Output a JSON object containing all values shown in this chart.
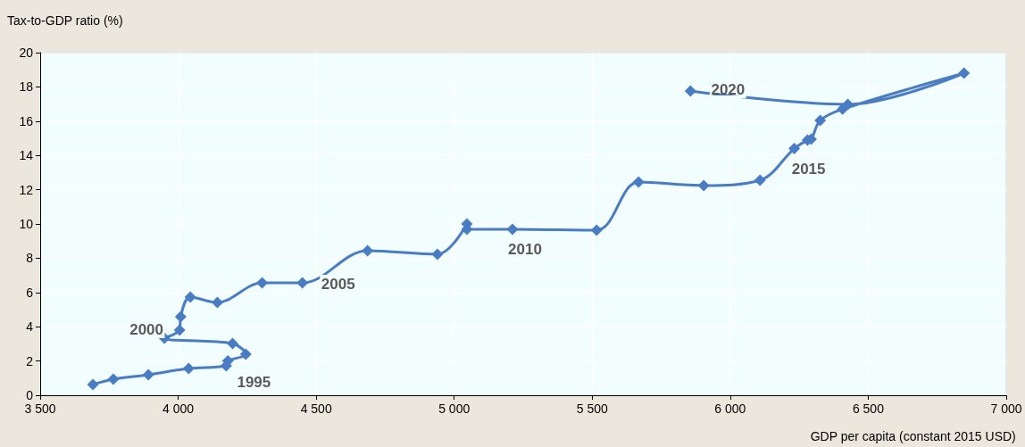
{
  "chart_data": {
    "type": "line",
    "xlabel": "GDP per capita (constant 2015 USD)",
    "ylabel": "Tax-to-GDP ratio (%)",
    "series": [
      {
        "color": "#4a7cc4",
        "x": [
          3691,
          3765,
          3892,
          4038,
          4174,
          4180,
          4245,
          4197,
          3950,
          4005,
          4009,
          4044,
          4142,
          4304,
          4450,
          4686,
          4939,
          5046,
          5046,
          5211,
          5516,
          5668,
          5904,
          6108,
          6232,
          6280,
          6293,
          6326,
          6407,
          6847,
          6426,
          5856
        ],
        "values": [
          0.63,
          0.94,
          1.2,
          1.56,
          1.72,
          2.0,
          2.4,
          3.02,
          3.33,
          3.8,
          4.58,
          5.73,
          5.42,
          6.56,
          6.56,
          8.44,
          8.23,
          10.0,
          9.69,
          9.69,
          9.64,
          12.45,
          12.24,
          12.55,
          14.4,
          14.9,
          14.95,
          16.04,
          16.7,
          18.8,
          16.98,
          17.76
        ]
      }
    ],
    "xlim": [
      3500,
      7000
    ],
    "xticks": [
      {
        "value": 3500,
        "label": "3 500"
      },
      {
        "value": 4000,
        "label": "4 000"
      },
      {
        "value": 4500,
        "label": "4 500"
      },
      {
        "value": 5000,
        "label": "5 000"
      },
      {
        "value": 5500,
        "label": "5 500"
      },
      {
        "value": 6000,
        "label": "6 000"
      },
      {
        "value": 6500,
        "label": "6 500"
      },
      {
        "value": 7000,
        "label": "7 000"
      }
    ],
    "ylim": [
      0,
      20
    ],
    "yticks": [
      0,
      2,
      4,
      6,
      8,
      10,
      12,
      14,
      16,
      18,
      20
    ],
    "grid": true,
    "marker": "diamond",
    "line_style": "solid",
    "annotations": [
      {
        "text": "1995",
        "x": 4174,
        "y": 1.72
      },
      {
        "text": "2000",
        "x": 3950,
        "y": 3.33
      },
      {
        "text": "2005",
        "x": 4450,
        "y": 6.56
      },
      {
        "text": "2010",
        "x": 5211,
        "y": 9.69
      },
      {
        "text": "2015",
        "x": 6232,
        "y": 14.4
      },
      {
        "text": "2020",
        "x": 5856,
        "y": 17.76
      }
    ]
  }
}
